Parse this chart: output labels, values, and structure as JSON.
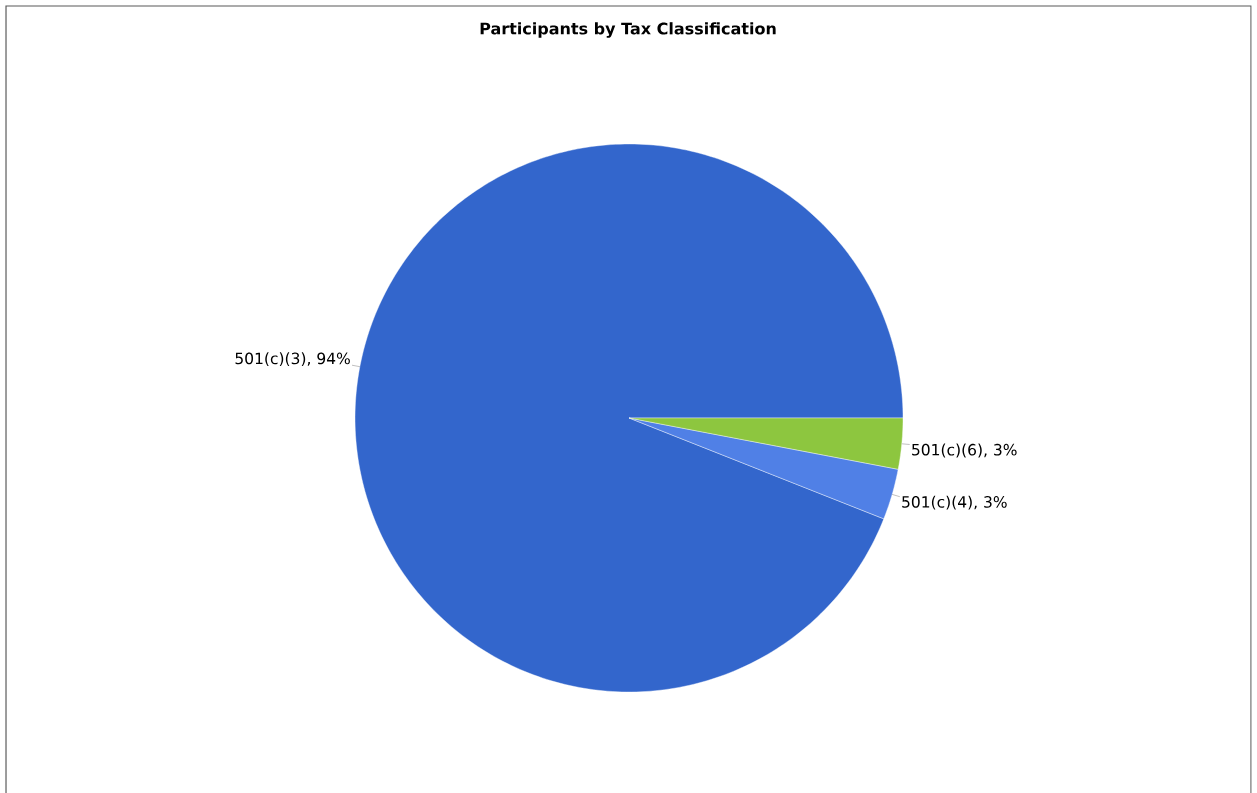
{
  "chart_data": {
    "type": "pie",
    "title": "Participants by Tax Classification",
    "categories": [
      "501(c)(3)",
      "501(c)(4)",
      "501(c)(6)"
    ],
    "values": [
      94,
      3,
      3
    ],
    "value_labels": [
      ", 94%",
      ", 3%",
      ", 3%"
    ],
    "colors": [
      "#3366cc",
      "#5080e6",
      "#8dc63f"
    ]
  }
}
